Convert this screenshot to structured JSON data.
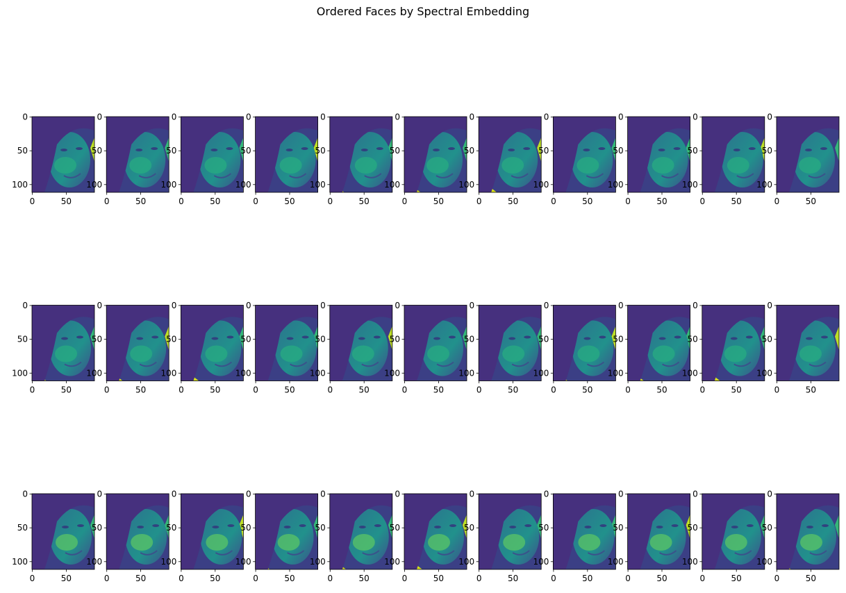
{
  "title": "Ordered Faces by Spectral Embedding",
  "chart_data": [
    {
      "type": "image",
      "xlim": [
        -0.5,
        91.5
      ],
      "ylim": [
        111.5,
        -0.5
      ],
      "xticks": [
        0,
        50
      ],
      "yticks": [
        0,
        50,
        100
      ]
    },
    {
      "type": "image",
      "xlim": [
        -0.5,
        91.5
      ],
      "ylim": [
        111.5,
        -0.5
      ],
      "xticks": [
        0,
        50
      ],
      "yticks": [
        0,
        50,
        100
      ]
    },
    {
      "type": "image",
      "xlim": [
        -0.5,
        91.5
      ],
      "ylim": [
        111.5,
        -0.5
      ],
      "xticks": [
        0,
        50
      ],
      "yticks": [
        0,
        50,
        100
      ]
    },
    {
      "type": "image",
      "xlim": [
        -0.5,
        91.5
      ],
      "ylim": [
        111.5,
        -0.5
      ],
      "xticks": [
        0,
        50
      ],
      "yticks": [
        0,
        50,
        100
      ]
    },
    {
      "type": "image",
      "xlim": [
        -0.5,
        91.5
      ],
      "ylim": [
        111.5,
        -0.5
      ],
      "xticks": [
        0,
        50
      ],
      "yticks": [
        0,
        50,
        100
      ]
    },
    {
      "type": "image",
      "xlim": [
        -0.5,
        91.5
      ],
      "ylim": [
        111.5,
        -0.5
      ],
      "xticks": [
        0,
        50
      ],
      "yticks": [
        0,
        50,
        100
      ]
    },
    {
      "type": "image",
      "xlim": [
        -0.5,
        91.5
      ],
      "ylim": [
        111.5,
        -0.5
      ],
      "xticks": [
        0,
        50
      ],
      "yticks": [
        0,
        50,
        100
      ]
    },
    {
      "type": "image",
      "xlim": [
        -0.5,
        91.5
      ],
      "ylim": [
        111.5,
        -0.5
      ],
      "xticks": [
        0,
        50
      ],
      "yticks": [
        0,
        50,
        100
      ]
    },
    {
      "type": "image",
      "xlim": [
        -0.5,
        91.5
      ],
      "ylim": [
        111.5,
        -0.5
      ],
      "xticks": [
        0,
        50
      ],
      "yticks": [
        0,
        50,
        100
      ]
    },
    {
      "type": "image",
      "xlim": [
        -0.5,
        91.5
      ],
      "ylim": [
        111.5,
        -0.5
      ],
      "xticks": [
        0,
        50
      ],
      "yticks": [
        0,
        50,
        100
      ]
    },
    {
      "type": "image",
      "xlim": [
        -0.5,
        91.5
      ],
      "ylim": [
        111.5,
        -0.5
      ],
      "xticks": [
        0,
        50
      ],
      "yticks": [
        0,
        50,
        100
      ]
    },
    {
      "type": "image",
      "xlim": [
        -0.5,
        91.5
      ],
      "ylim": [
        111.5,
        -0.5
      ],
      "xticks": [
        0,
        50
      ],
      "yticks": [
        0,
        50,
        100
      ]
    },
    {
      "type": "image",
      "xlim": [
        -0.5,
        91.5
      ],
      "ylim": [
        111.5,
        -0.5
      ],
      "xticks": [
        0,
        50
      ],
      "yticks": [
        0,
        50,
        100
      ]
    },
    {
      "type": "image",
      "xlim": [
        -0.5,
        91.5
      ],
      "ylim": [
        111.5,
        -0.5
      ],
      "xticks": [
        0,
        50
      ],
      "yticks": [
        0,
        50,
        100
      ]
    },
    {
      "type": "image",
      "xlim": [
        -0.5,
        91.5
      ],
      "ylim": [
        111.5,
        -0.5
      ],
      "xticks": [
        0,
        50
      ],
      "yticks": [
        0,
        50,
        100
      ]
    },
    {
      "type": "image",
      "xlim": [
        -0.5,
        91.5
      ],
      "ylim": [
        111.5,
        -0.5
      ],
      "xticks": [
        0,
        50
      ],
      "yticks": [
        0,
        50,
        100
      ]
    },
    {
      "type": "image",
      "xlim": [
        -0.5,
        91.5
      ],
      "ylim": [
        111.5,
        -0.5
      ],
      "xticks": [
        0,
        50
      ],
      "yticks": [
        0,
        50,
        100
      ]
    },
    {
      "type": "image",
      "xlim": [
        -0.5,
        91.5
      ],
      "ylim": [
        111.5,
        -0.5
      ],
      "xticks": [
        0,
        50
      ],
      "yticks": [
        0,
        50,
        100
      ]
    },
    {
      "type": "image",
      "xlim": [
        -0.5,
        91.5
      ],
      "ylim": [
        111.5,
        -0.5
      ],
      "xticks": [
        0,
        50
      ],
      "yticks": [
        0,
        50,
        100
      ]
    },
    {
      "type": "image",
      "xlim": [
        -0.5,
        91.5
      ],
      "ylim": [
        111.5,
        -0.5
      ],
      "xticks": [
        0,
        50
      ],
      "yticks": [
        0,
        50,
        100
      ]
    },
    {
      "type": "image",
      "xlim": [
        -0.5,
        91.5
      ],
      "ylim": [
        111.5,
        -0.5
      ],
      "xticks": [
        0,
        50
      ],
      "yticks": [
        0,
        50,
        100
      ]
    },
    {
      "type": "image",
      "xlim": [
        -0.5,
        91.5
      ],
      "ylim": [
        111.5,
        -0.5
      ],
      "xticks": [
        0,
        50
      ],
      "yticks": [
        0,
        50,
        100
      ]
    },
    {
      "type": "image",
      "xlim": [
        -0.5,
        91.5
      ],
      "ylim": [
        111.5,
        -0.5
      ],
      "xticks": [
        0,
        50
      ],
      "yticks": [
        0,
        50,
        100
      ]
    },
    {
      "type": "image",
      "xlim": [
        -0.5,
        91.5
      ],
      "ylim": [
        111.5,
        -0.5
      ],
      "xticks": [
        0,
        50
      ],
      "yticks": [
        0,
        50,
        100
      ]
    },
    {
      "type": "image",
      "xlim": [
        -0.5,
        91.5
      ],
      "ylim": [
        111.5,
        -0.5
      ],
      "xticks": [
        0,
        50
      ],
      "yticks": [
        0,
        50,
        100
      ]
    },
    {
      "type": "image",
      "xlim": [
        -0.5,
        91.5
      ],
      "ylim": [
        111.5,
        -0.5
      ],
      "xticks": [
        0,
        50
      ],
      "yticks": [
        0,
        50,
        100
      ]
    },
    {
      "type": "image",
      "xlim": [
        -0.5,
        91.5
      ],
      "ylim": [
        111.5,
        -0.5
      ],
      "xticks": [
        0,
        50
      ],
      "yticks": [
        0,
        50,
        100
      ]
    },
    {
      "type": "image",
      "xlim": [
        -0.5,
        91.5
      ],
      "ylim": [
        111.5,
        -0.5
      ],
      "xticks": [
        0,
        50
      ],
      "yticks": [
        0,
        50,
        100
      ]
    },
    {
      "type": "image",
      "xlim": [
        -0.5,
        91.5
      ],
      "ylim": [
        111.5,
        -0.5
      ],
      "xticks": [
        0,
        50
      ],
      "yticks": [
        0,
        50,
        100
      ]
    },
    {
      "type": "image",
      "xlim": [
        -0.5,
        91.5
      ],
      "ylim": [
        111.5,
        -0.5
      ],
      "xticks": [
        0,
        50
      ],
      "yticks": [
        0,
        50,
        100
      ]
    },
    {
      "type": "image",
      "xlim": [
        -0.5,
        91.5
      ],
      "ylim": [
        111.5,
        -0.5
      ],
      "xticks": [
        0,
        50
      ],
      "yticks": [
        0,
        50,
        100
      ]
    },
    {
      "type": "image",
      "xlim": [
        -0.5,
        91.5
      ],
      "ylim": [
        111.5,
        -0.5
      ],
      "xticks": [
        0,
        50
      ],
      "yticks": [
        0,
        50,
        100
      ]
    },
    {
      "type": "image",
      "xlim": [
        -0.5,
        91.5
      ],
      "ylim": [
        111.5,
        -0.5
      ],
      "xticks": [
        0,
        50
      ],
      "yticks": [
        0,
        50,
        100
      ]
    }
  ]
}
